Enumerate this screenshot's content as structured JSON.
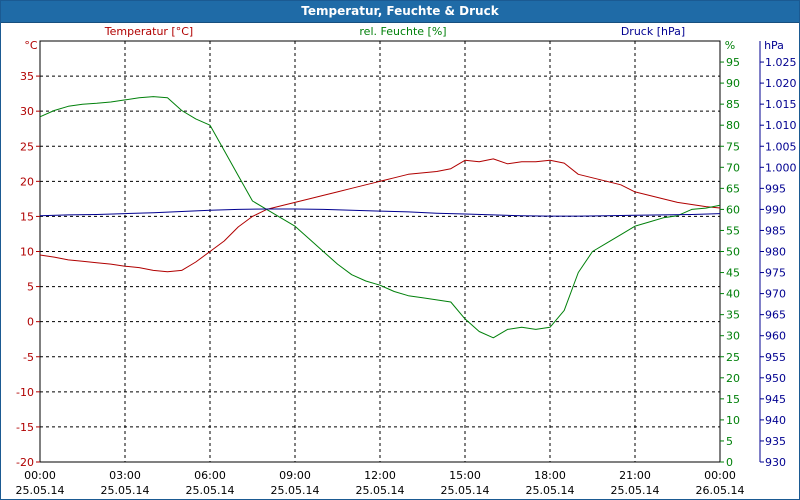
{
  "window": {
    "title": "Temperatur, Feuchte & Druck"
  },
  "colors": {
    "temperature": "#b00000",
    "humidity": "#00800a",
    "pressure": "#000090",
    "grid": "#000000",
    "text": "#000000"
  },
  "chart_data": {
    "type": "line",
    "title": "Temperatur, Feuchte & Druck",
    "x_ticks": [
      {
        "h": 0,
        "time": "00:00",
        "date": "25.05.14"
      },
      {
        "h": 3,
        "time": "03:00",
        "date": "25.05.14"
      },
      {
        "h": 6,
        "time": "06:00",
        "date": "25.05.14"
      },
      {
        "h": 9,
        "time": "09:00",
        "date": "25.05.14"
      },
      {
        "h": 12,
        "time": "12:00",
        "date": "25.05.14"
      },
      {
        "h": 15,
        "time": "15:00",
        "date": "25.05.14"
      },
      {
        "h": 18,
        "time": "18:00",
        "date": "25.05.14"
      },
      {
        "h": 21,
        "time": "21:00",
        "date": "25.05.14"
      },
      {
        "h": 24,
        "time": "00:00",
        "date": "26.05.14"
      }
    ],
    "xlim": [
      0,
      24
    ],
    "axes": {
      "temperature": {
        "label": "Temperatur [°C]",
        "unit": "°C",
        "lim": [
          -20,
          40
        ],
        "ticks": [
          -20,
          -15,
          -10,
          -5,
          0,
          5,
          10,
          15,
          20,
          25,
          30,
          35
        ]
      },
      "humidity": {
        "label": "rel. Feuchte [%]",
        "unit": "%",
        "lim": [
          0,
          100
        ],
        "ticks": [
          0,
          5,
          10,
          15,
          20,
          25,
          30,
          35,
          40,
          45,
          50,
          55,
          60,
          65,
          70,
          75,
          80,
          85,
          90,
          95
        ]
      },
      "pressure": {
        "label": "Druck [hPa]",
        "unit": "hPa",
        "lim": [
          930,
          1030
        ],
        "ticks": [
          "930",
          "935",
          "940",
          "945",
          "950",
          "955",
          "960",
          "965",
          "970",
          "975",
          "980",
          "985",
          "990",
          "995",
          "1.000",
          "1.005",
          "1.010",
          "1.015",
          "1.020",
          "1.025"
        ]
      }
    },
    "series": [
      {
        "name": "Temperatur",
        "axis": "temperature",
        "x": [
          0,
          0.5,
          1,
          1.5,
          2,
          2.5,
          3,
          3.5,
          4,
          4.5,
          5,
          5.5,
          6,
          6.5,
          7,
          7.5,
          8,
          8.5,
          9,
          9.5,
          10,
          10.5,
          11,
          11.5,
          12,
          12.5,
          13,
          13.5,
          14,
          14.5,
          15,
          15.5,
          16,
          16.5,
          17,
          17.5,
          18,
          18.5,
          19,
          19.5,
          20,
          20.5,
          21,
          21.5,
          22,
          22.5,
          23,
          23.5,
          24
        ],
        "values": [
          9.5,
          9.2,
          8.8,
          8.6,
          8.4,
          8.2,
          7.9,
          7.7,
          7.3,
          7.1,
          7.3,
          8.5,
          10,
          11.5,
          13.5,
          15,
          16,
          16.5,
          17,
          17.5,
          18,
          18.5,
          19,
          19.5,
          20,
          20.5,
          21,
          21.2,
          21.4,
          21.8,
          23,
          22.8,
          23.2,
          22.5,
          22.8,
          22.8,
          23,
          22.6,
          21,
          20.5,
          20,
          19.5,
          18.5,
          18,
          17.5,
          17,
          16.7,
          16.4,
          16.2
        ]
      },
      {
        "name": "rel. Feuchte",
        "axis": "humidity",
        "x": [
          0,
          0.5,
          1,
          1.5,
          2,
          2.5,
          3,
          3.5,
          4,
          4.5,
          5,
          5.5,
          6,
          6.5,
          7,
          7.5,
          8,
          8.5,
          9,
          9.5,
          10,
          10.5,
          11,
          11.5,
          12,
          12.5,
          13,
          13.5,
          14,
          14.5,
          15,
          15.5,
          16,
          16.5,
          17,
          17.5,
          18,
          18.5,
          19,
          19.5,
          20,
          20.5,
          21,
          21.5,
          22,
          22.5,
          23,
          23.5,
          24
        ],
        "values": [
          82,
          83.5,
          84.5,
          85,
          85.2,
          85.5,
          86,
          86.5,
          86.8,
          86.5,
          83.5,
          81.5,
          80,
          74,
          68,
          62,
          60,
          58,
          56,
          53,
          50,
          47,
          44.5,
          43,
          42,
          40.5,
          39.5,
          39,
          38.5,
          38,
          34,
          31,
          29.5,
          31.5,
          32,
          31.5,
          32,
          36,
          45,
          50,
          52,
          54,
          56,
          57,
          58,
          58.5,
          60,
          60.3,
          61
        ]
      },
      {
        "name": "Druck",
        "axis": "pressure",
        "x": [
          0,
          1,
          2,
          3,
          4,
          5,
          6,
          7,
          8,
          9,
          10,
          11,
          12,
          13,
          14,
          15,
          16,
          17,
          18,
          19,
          20,
          21,
          22,
          23,
          24
        ],
        "values": [
          988.5,
          988.7,
          988.8,
          989,
          989.2,
          989.5,
          989.8,
          990,
          990.1,
          990.1,
          990,
          989.8,
          989.6,
          989.4,
          989.1,
          988.9,
          988.7,
          988.5,
          988.4,
          988.4,
          988.5,
          988.6,
          988.7,
          988.8,
          989.0
        ]
      }
    ]
  }
}
